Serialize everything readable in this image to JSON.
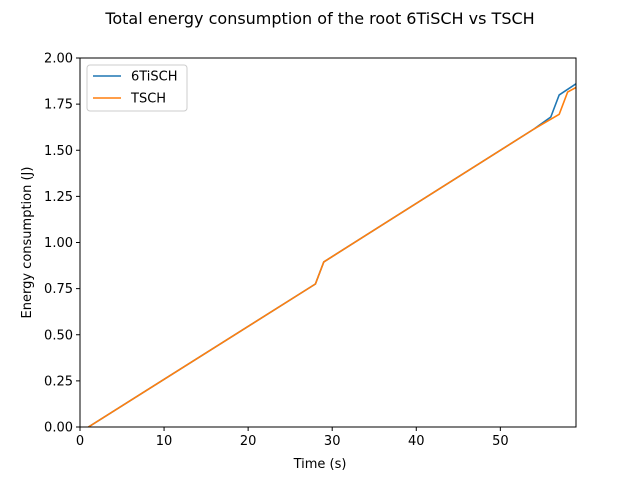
{
  "chart_data": {
    "type": "line",
    "title": "Total energy consumption of the root 6TiSCH vs TSCH",
    "xlabel": "Time (s)",
    "ylabel": "Energy consumption (J)",
    "xlim": [
      0,
      59
    ],
    "ylim": [
      0,
      2.0
    ],
    "xticks": [
      0,
      10,
      20,
      30,
      40,
      50
    ],
    "xtick_labels": [
      "0",
      "10",
      "20",
      "30",
      "40",
      "50"
    ],
    "yticks": [
      0,
      0.25,
      0.5,
      0.75,
      1.0,
      1.25,
      1.5,
      1.75,
      2.0
    ],
    "ytick_labels": [
      "0.00",
      "0.25",
      "0.50",
      "0.75",
      "1.00",
      "1.25",
      "1.50",
      "1.75",
      "2.00"
    ],
    "grid": false,
    "legend_position": "upper-left",
    "series": [
      {
        "name": "6TiSCH",
        "color": "#1f77b4",
        "points": [
          [
            1,
            0.0
          ],
          [
            28,
            0.775
          ],
          [
            29,
            0.895
          ],
          [
            54,
            1.615
          ],
          [
            56,
            1.68
          ],
          [
            57,
            1.8
          ],
          [
            59,
            1.86
          ]
        ]
      },
      {
        "name": "TSCH",
        "color": "#ff7f0e",
        "points": [
          [
            1,
            0.0
          ],
          [
            28,
            0.775
          ],
          [
            29,
            0.895
          ],
          [
            54,
            1.615
          ],
          [
            57,
            1.695
          ],
          [
            58,
            1.815
          ],
          [
            59,
            1.84
          ]
        ]
      }
    ]
  }
}
